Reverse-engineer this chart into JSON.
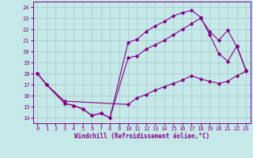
{
  "xlabel": "Windchill (Refroidissement éolien,°C)",
  "bg_color": "#c5e8e8",
  "grid_color": "#a8cccc",
  "line_color": "#880088",
  "xlim": [
    -0.5,
    23.5
  ],
  "ylim": [
    13.5,
    24.5
  ],
  "xticks": [
    0,
    1,
    2,
    3,
    4,
    5,
    6,
    7,
    8,
    9,
    10,
    11,
    12,
    13,
    14,
    15,
    16,
    17,
    18,
    19,
    20,
    21,
    22,
    23
  ],
  "yticks": [
    14,
    15,
    16,
    17,
    18,
    19,
    20,
    21,
    22,
    23,
    24
  ],
  "line1_x": [
    0,
    1,
    3,
    4,
    5,
    6,
    7,
    8,
    10,
    11,
    12,
    13,
    14,
    15,
    16,
    17,
    18,
    19,
    20,
    21,
    22,
    23
  ],
  "line1_y": [
    18,
    17,
    15.3,
    15.1,
    14.8,
    14.2,
    14.4,
    14.0,
    20.8,
    21.1,
    21.8,
    22.3,
    22.7,
    23.2,
    23.5,
    23.7,
    23.1,
    21.5,
    19.8,
    19.1,
    20.5,
    18.3
  ],
  "line2_x": [
    0,
    1,
    3,
    4,
    5,
    6,
    7,
    8,
    10,
    11,
    12,
    13,
    14,
    15,
    16,
    17,
    18,
    19,
    20,
    21,
    22,
    23
  ],
  "line2_y": [
    18,
    17,
    15.3,
    15.1,
    14.8,
    14.2,
    14.4,
    14.0,
    19.4,
    19.6,
    20.2,
    20.6,
    21.0,
    21.5,
    22.0,
    22.5,
    23.0,
    21.8,
    21.0,
    21.9,
    20.4,
    18.3
  ],
  "line3_x": [
    0,
    1,
    3,
    10,
    11,
    12,
    13,
    14,
    15,
    16,
    17,
    18,
    19,
    20,
    21,
    22,
    23
  ],
  "line3_y": [
    18,
    17.0,
    15.5,
    15.2,
    15.8,
    16.1,
    16.5,
    16.8,
    17.1,
    17.4,
    17.8,
    17.5,
    17.3,
    17.1,
    17.3,
    17.8,
    18.2
  ]
}
